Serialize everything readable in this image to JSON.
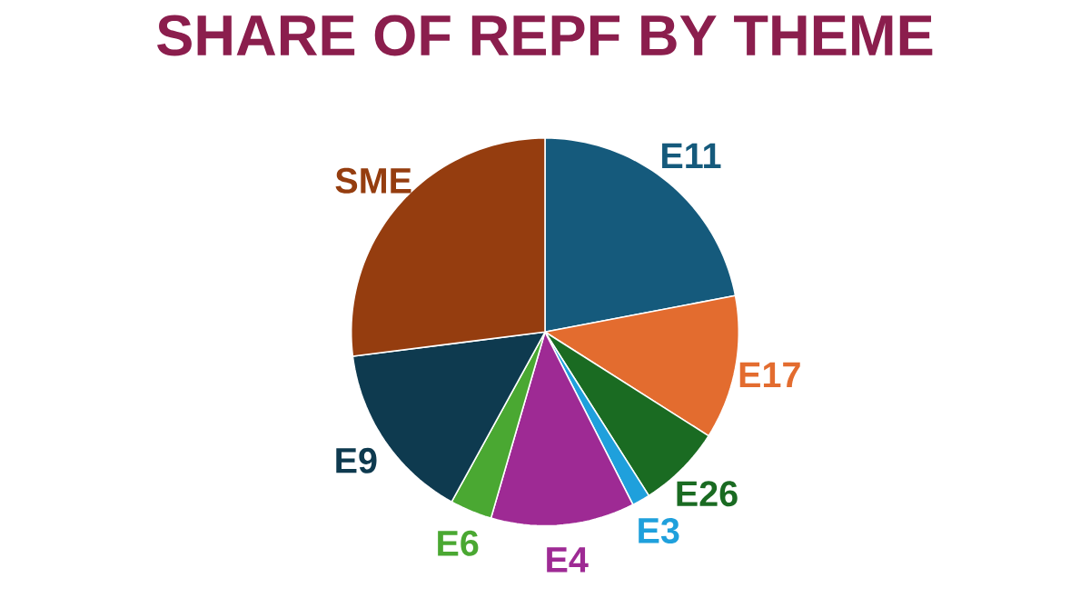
{
  "chart_data": {
    "type": "pie",
    "title": "SHARE OF REPF BY THEME",
    "categories": [
      "E11",
      "E17",
      "E26",
      "E3",
      "E4",
      "E6",
      "E9",
      "SME"
    ],
    "values": [
      22,
      12,
      7,
      1.5,
      12,
      3.5,
      15,
      27
    ],
    "colors": [
      "#155a7c",
      "#e36c2f",
      "#1a6b22",
      "#1fa0dc",
      "#9e2a94",
      "#4aa832",
      "#0e3a4f",
      "#953d0f"
    ]
  }
}
